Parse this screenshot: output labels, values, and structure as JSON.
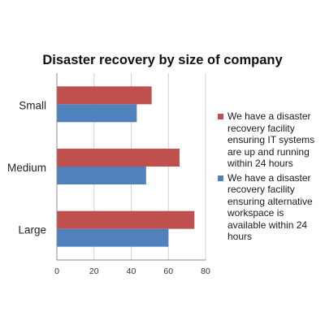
{
  "chart_data": {
    "type": "bar",
    "orientation": "horizontal",
    "title": "Disaster recovery by size of company",
    "xlabel": "",
    "ylabel": "",
    "categories": [
      "Small",
      "Medium",
      "Large"
    ],
    "series": [
      {
        "name": "We have a disaster recovery facility ensuring IT systems are up and running within 24 hours",
        "color": "#c0504d",
        "values": [
          51,
          66,
          74
        ]
      },
      {
        "name": "We have a disaster recovery facility ensuring alternative workspace is available within 24 hours",
        "color": "#4f81bd",
        "values": [
          43,
          48,
          60
        ]
      }
    ],
    "xlim": [
      0,
      80
    ],
    "xticks": [
      "0",
      "20",
      "40",
      "60",
      "80"
    ],
    "grid": true,
    "legend_position": "right"
  }
}
